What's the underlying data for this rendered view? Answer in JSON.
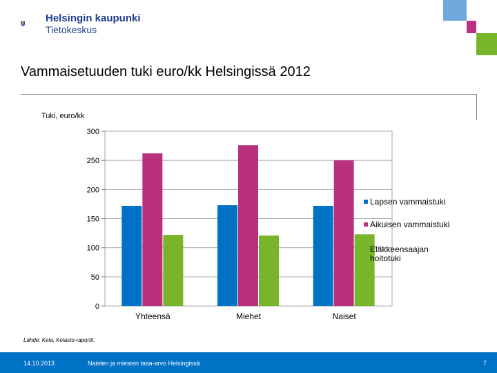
{
  "header": {
    "org_name": "Helsingin kaupunki",
    "unit_name": "Tietokeskus",
    "brand_colors": [
      "#0072c6",
      "#b9307e",
      "#78b52b",
      "#6fa8dc"
    ]
  },
  "slide": {
    "title": "Vammaisetuuden tuki euro/kk Helsingissä 2012",
    "source": "Lähde: Kela, Kelasto-raportit."
  },
  "footer": {
    "date": "14.10.2013",
    "text": "Naisten ja miesten tasa-arvo Helsingissä",
    "page": "7"
  },
  "chart_data": {
    "type": "bar",
    "title": "",
    "xlabel": "",
    "ylabel": "Tuki, euro/kk",
    "categories": [
      "Yhteensä",
      "Miehet",
      "Naiset"
    ],
    "series": [
      {
        "name": "Lapsen vammaistuki",
        "color": "#0072c6",
        "values": [
          172,
          173,
          172
        ]
      },
      {
        "name": "Aikuisen vammaistuki",
        "color": "#b9307e",
        "values": [
          262,
          276,
          250
        ]
      },
      {
        "name": "Eläkkeensaajan hoitotuki",
        "legend_lines": [
          "Eläkkeensaajan",
          "hoitotuki"
        ],
        "color": "#78b52b",
        "values": [
          122,
          121,
          123
        ]
      }
    ],
    "ylim": [
      0,
      300
    ],
    "yticks": [
      "0",
      "50",
      "100",
      "150",
      "200",
      "250",
      "300"
    ],
    "grid": true,
    "legend_position": "right"
  }
}
